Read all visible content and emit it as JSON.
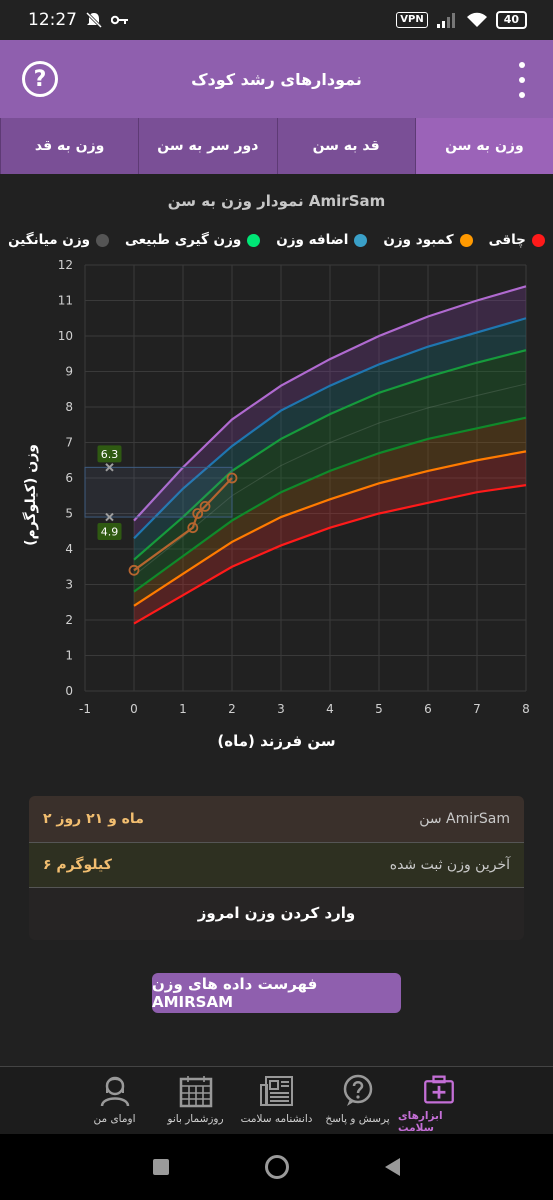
{
  "status": {
    "time": "12:27",
    "vpn": "VPN",
    "battery": "40",
    "icons": [
      "mute-icon",
      "key-icon",
      "signal-icon",
      "wifi-icon"
    ]
  },
  "appbar": {
    "title": "نمودارهای رشد کودک",
    "help_icon": "?"
  },
  "tabs": [
    {
      "label": "وزن به سن",
      "active": true
    },
    {
      "label": "قد به سن",
      "active": false
    },
    {
      "label": "دور سر به سن",
      "active": false
    },
    {
      "label": "وزن به قد",
      "active": false
    }
  ],
  "chart_title": "نمودار وزن به سن AmirSam",
  "legend": [
    {
      "label": "چاقی",
      "color": "#ff1a1a"
    },
    {
      "label": "کمبود وزن",
      "color": "#ff9900"
    },
    {
      "label": "اضافه وزن",
      "color": "#3aa0c8"
    },
    {
      "label": "وزن گیری طبیعی",
      "color": "#00e676"
    },
    {
      "label": "وزن میانگین",
      "color": "#555555"
    }
  ],
  "chart_data": {
    "type": "line",
    "xlabel": "سن فرزند (ماه)",
    "ylabel": "وزن (کیلوگرم)",
    "xlim": [
      -1,
      8
    ],
    "ylim": [
      0,
      12
    ],
    "x_ticks": [
      "-1",
      "0",
      "1",
      "2",
      "3",
      "4",
      "5",
      "6",
      "7",
      "8"
    ],
    "y_ticks": [
      "0",
      "1",
      "2",
      "3",
      "4",
      "5",
      "6",
      "7",
      "8",
      "9",
      "10",
      "11",
      "12"
    ],
    "x": [
      0,
      1,
      2,
      3,
      4,
      5,
      6,
      7,
      8
    ],
    "bands": [
      {
        "name": "red",
        "color": "#ff1a1a",
        "values": [
          1.9,
          2.7,
          3.5,
          4.1,
          4.6,
          5.0,
          5.3,
          5.6,
          5.8
        ]
      },
      {
        "name": "orange",
        "color": "#ff7b00",
        "values": [
          2.4,
          3.3,
          4.2,
          4.9,
          5.4,
          5.85,
          6.2,
          6.5,
          6.75
        ]
      },
      {
        "name": "dark-green",
        "color": "#0f8a2a",
        "values": [
          2.8,
          3.8,
          4.8,
          5.6,
          6.2,
          6.7,
          7.1,
          7.4,
          7.7
        ]
      },
      {
        "name": "green",
        "color": "#169b3c",
        "values": [
          3.7,
          4.9,
          6.2,
          7.1,
          7.8,
          8.4,
          8.85,
          9.25,
          9.6
        ]
      },
      {
        "name": "blue",
        "color": "#1f76b0",
        "values": [
          4.3,
          5.7,
          6.9,
          7.9,
          8.6,
          9.2,
          9.7,
          10.1,
          10.5
        ]
      },
      {
        "name": "purple",
        "color": "#b06ad0",
        "values": [
          4.8,
          6.3,
          7.65,
          8.6,
          9.35,
          10.0,
          10.55,
          11.0,
          11.4
        ]
      }
    ],
    "child_series": {
      "color": "#b5652f",
      "points": [
        [
          0,
          3.4
        ],
        [
          1.2,
          4.6
        ],
        [
          1.3,
          5.0
        ],
        [
          1.45,
          5.2
        ],
        [
          2.0,
          6.0
        ]
      ]
    },
    "markers": [
      {
        "label": "6.3",
        "x": -0.5,
        "y": 6.3
      },
      {
        "label": "4.9",
        "x": -0.5,
        "y": 4.9
      }
    ],
    "highlight_box": {
      "x0": -1,
      "x1": 2,
      "y0": 4.9,
      "y1": 6.3
    }
  },
  "info_card": {
    "age_label": "سن AmirSam",
    "age_value": "۲ ماه و ۲۱ روز",
    "weight_label": "آخرین وزن ثبت شده",
    "weight_value": "۶ کیلوگرم",
    "enter_button": "وارد کردن وزن امروز"
  },
  "list_button": "فهرست داده های وزن AMIRSAM",
  "bottom_nav": [
    {
      "label": "ابزارهای سلامت",
      "icon": "health-kit-icon",
      "active": true
    },
    {
      "label": "پرسش و پاسخ",
      "icon": "question-bubble-icon",
      "active": false
    },
    {
      "label": "دانشنامه سلامت",
      "icon": "newspaper-icon",
      "active": false
    },
    {
      "label": "روزشمار بانو",
      "icon": "calendar-icon",
      "active": false
    },
    {
      "label": "اومای من",
      "icon": "user-icon",
      "active": false
    }
  ]
}
